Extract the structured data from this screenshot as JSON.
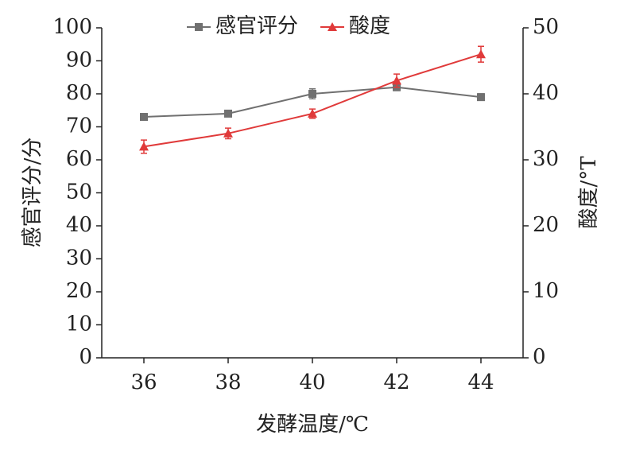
{
  "chart_data": {
    "type": "line",
    "x": [
      36,
      38,
      40,
      42,
      44
    ],
    "xlim": [
      35,
      45
    ],
    "xticks": [
      36,
      38,
      40,
      42,
      44
    ],
    "ylim": [
      0,
      100
    ],
    "yticks": [
      0,
      10,
      20,
      30,
      40,
      50,
      60,
      70,
      80,
      90,
      100
    ],
    "y2lim": [
      0,
      50
    ],
    "y2ticks": [
      0,
      10,
      20,
      30,
      40,
      50
    ],
    "xlabel": "发酵温度/℃",
    "ylabel": "感官评分/分",
    "y2label": "酸度/°T",
    "legend": "top",
    "series": [
      {
        "name": "感官评分",
        "color": "#707070",
        "marker": "square",
        "values": [
          73,
          74,
          80,
          82,
          79
        ],
        "errors": [
          1,
          0.6,
          1.5,
          1,
          1
        ]
      },
      {
        "name": "酸度",
        "color": "#e03a3a",
        "marker": "triangle",
        "axis": "y2",
        "values": [
          32,
          34,
          37,
          42,
          46
        ],
        "errors": [
          1,
          0.8,
          0.7,
          1,
          1.2
        ]
      }
    ]
  }
}
